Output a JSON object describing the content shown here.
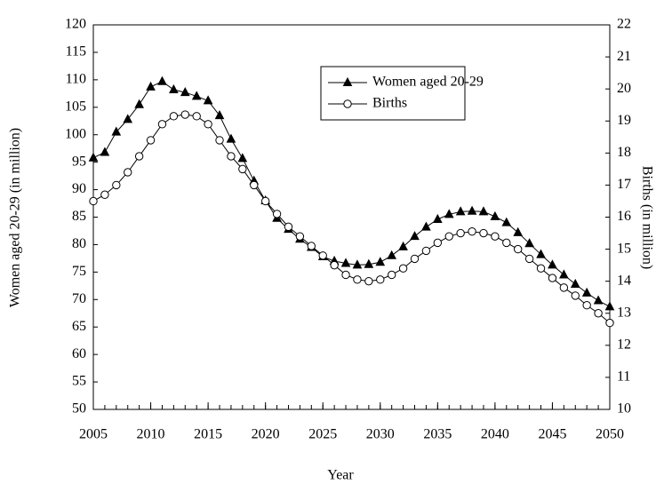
{
  "chart_data": {
    "type": "line",
    "x_label": "Year",
    "y_label": "Women aged 20-29 (in million)",
    "y2_label": "Births (in million)",
    "x": [
      2005,
      2006,
      2007,
      2008,
      2009,
      2010,
      2011,
      2012,
      2013,
      2014,
      2015,
      2016,
      2017,
      2018,
      2019,
      2020,
      2021,
      2022,
      2023,
      2024,
      2025,
      2026,
      2027,
      2028,
      2029,
      2030,
      2031,
      2032,
      2033,
      2034,
      2035,
      2036,
      2037,
      2038,
      2039,
      2040,
      2041,
      2042,
      2043,
      2044,
      2045,
      2046,
      2047,
      2048,
      2049,
      2050
    ],
    "series": [
      {
        "name": "Women aged 20-29",
        "color": "#000000",
        "marker": "triangle",
        "values": [
          95.8,
          96.8,
          100.5,
          102.8,
          105.5,
          108.7,
          109.7,
          108.2,
          107.7,
          107,
          106.2,
          103.5,
          99.2,
          95.7,
          91.6,
          88,
          84.8,
          82.8,
          81,
          79.5,
          77.8,
          77,
          76.6,
          76.3,
          76.4,
          76.8,
          78,
          79.6,
          81.5,
          83.2,
          84.6,
          85.5,
          86,
          86.1,
          86,
          85.1,
          84,
          82.2,
          80.2,
          78.2,
          76.3,
          74.5,
          72.8,
          71.2,
          69.8,
          68.7
        ]
      },
      {
        "name": "Births",
        "color": "#000000",
        "marker": "circle",
        "axis": "y2",
        "values": [
          16.5,
          16.7,
          17.0,
          17.4,
          17.9,
          18.4,
          18.9,
          19.15,
          19.2,
          19.15,
          18.9,
          18.4,
          17.9,
          17.5,
          17.0,
          16.5,
          16.1,
          15.7,
          15.4,
          15.1,
          14.8,
          14.5,
          14.2,
          14.05,
          14.0,
          14.05,
          14.2,
          14.4,
          14.7,
          14.95,
          15.2,
          15.4,
          15.5,
          15.55,
          15.5,
          15.4,
          15.2,
          15.0,
          14.7,
          14.4,
          14.1,
          13.8,
          13.55,
          13.25,
          13.0,
          12.7
        ]
      }
    ],
    "xlim": [
      2005,
      2050
    ],
    "xticks": [
      2005,
      2010,
      2015,
      2020,
      2025,
      2030,
      2035,
      2040,
      2045,
      2050
    ],
    "ylim": [
      50,
      120
    ],
    "yticks": [
      50,
      55,
      60,
      65,
      70,
      75,
      80,
      85,
      90,
      95,
      100,
      105,
      110,
      115,
      120
    ],
    "y2lim": [
      10,
      22
    ],
    "y2ticks": [
      10,
      11,
      12,
      13,
      14,
      15,
      16,
      17,
      18,
      19,
      20,
      21,
      22
    ],
    "legend": "upper right",
    "grid": false
  }
}
